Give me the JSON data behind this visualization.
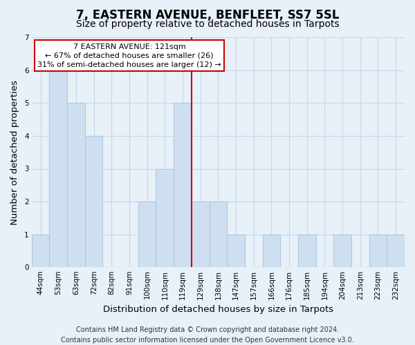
{
  "title": "7, EASTERN AVENUE, BENFLEET, SS7 5SL",
  "subtitle": "Size of property relative to detached houses in Tarpots",
  "xlabel": "Distribution of detached houses by size in Tarpots",
  "ylabel": "Number of detached properties",
  "categories": [
    "44sqm",
    "53sqm",
    "63sqm",
    "72sqm",
    "82sqm",
    "91sqm",
    "100sqm",
    "110sqm",
    "119sqm",
    "129sqm",
    "138sqm",
    "147sqm",
    "157sqm",
    "166sqm",
    "176sqm",
    "185sqm",
    "194sqm",
    "204sqm",
    "213sqm",
    "223sqm",
    "232sqm"
  ],
  "values": [
    1,
    6,
    5,
    4,
    0,
    0,
    2,
    3,
    5,
    2,
    2,
    1,
    0,
    1,
    0,
    1,
    0,
    1,
    0,
    1,
    1
  ],
  "bar_color": "#cddff0",
  "bar_edge_color": "#aec9e0",
  "highlight_index": 8,
  "highlight_line_color": "#cc0000",
  "ylim": [
    0,
    7
  ],
  "yticks": [
    0,
    1,
    2,
    3,
    4,
    5,
    6,
    7
  ],
  "annotation_title": "7 EASTERN AVENUE: 121sqm",
  "annotation_line1": "← 67% of detached houses are smaller (26)",
  "annotation_line2": "31% of semi-detached houses are larger (12) →",
  "annotation_box_color": "#ffffff",
  "annotation_box_edge_color": "#cc0000",
  "footer_line1": "Contains HM Land Registry data © Crown copyright and database right 2024.",
  "footer_line2": "Contains public sector information licensed under the Open Government Licence v3.0.",
  "background_color": "#e8f0f8",
  "grid_color": "#c5d8ea",
  "title_fontsize": 12,
  "subtitle_fontsize": 10,
  "axis_label_fontsize": 9.5,
  "tick_fontsize": 7.5,
  "footer_fontsize": 7
}
